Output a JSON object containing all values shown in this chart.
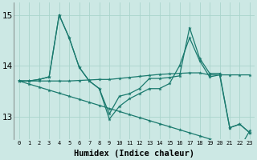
{
  "xlabel": "Humidex (Indice chaleur)",
  "x": [
    0,
    1,
    2,
    3,
    4,
    5,
    6,
    7,
    8,
    9,
    10,
    11,
    12,
    13,
    14,
    15,
    16,
    17,
    18,
    19,
    20,
    21,
    22,
    23
  ],
  "line1": [
    13.7,
    13.7,
    13.73,
    13.78,
    15.0,
    14.55,
    13.97,
    13.7,
    13.55,
    13.05,
    13.4,
    13.45,
    13.55,
    13.75,
    13.75,
    13.77,
    13.8,
    14.75,
    14.15,
    13.85,
    13.85,
    12.78,
    12.85,
    12.68
  ],
  "line2": [
    13.7,
    13.7,
    13.73,
    13.78,
    15.0,
    14.55,
    13.97,
    13.7,
    13.55,
    12.95,
    13.2,
    13.35,
    13.45,
    13.55,
    13.55,
    13.65,
    14.0,
    14.55,
    14.1,
    13.78,
    13.82,
    12.78,
    12.85,
    12.68
  ],
  "line3": [
    13.7,
    13.64,
    13.58,
    13.52,
    13.46,
    13.4,
    13.34,
    13.28,
    13.22,
    13.16,
    13.1,
    13.04,
    12.98,
    12.92,
    12.86,
    12.8,
    12.74,
    12.68,
    12.62,
    12.56,
    12.5,
    12.44,
    12.38,
    12.72
  ],
  "line4": [
    13.7,
    13.7,
    13.7,
    13.7,
    13.7,
    13.7,
    13.71,
    13.72,
    13.73,
    13.73,
    13.75,
    13.77,
    13.79,
    13.81,
    13.83,
    13.84,
    13.85,
    13.86,
    13.86,
    13.82,
    13.82,
    13.82,
    13.82,
    13.82
  ],
  "ylim": [
    12.55,
    15.25
  ],
  "yticks": [
    13,
    14,
    15
  ],
  "xticks": [
    0,
    1,
    2,
    3,
    4,
    5,
    6,
    7,
    8,
    9,
    10,
    11,
    12,
    13,
    14,
    15,
    16,
    17,
    18,
    19,
    20,
    21,
    22,
    23
  ],
  "bg_color": "#cce8e4",
  "grid_color": "#aad4cc",
  "line_color": "#1a7a6e"
}
